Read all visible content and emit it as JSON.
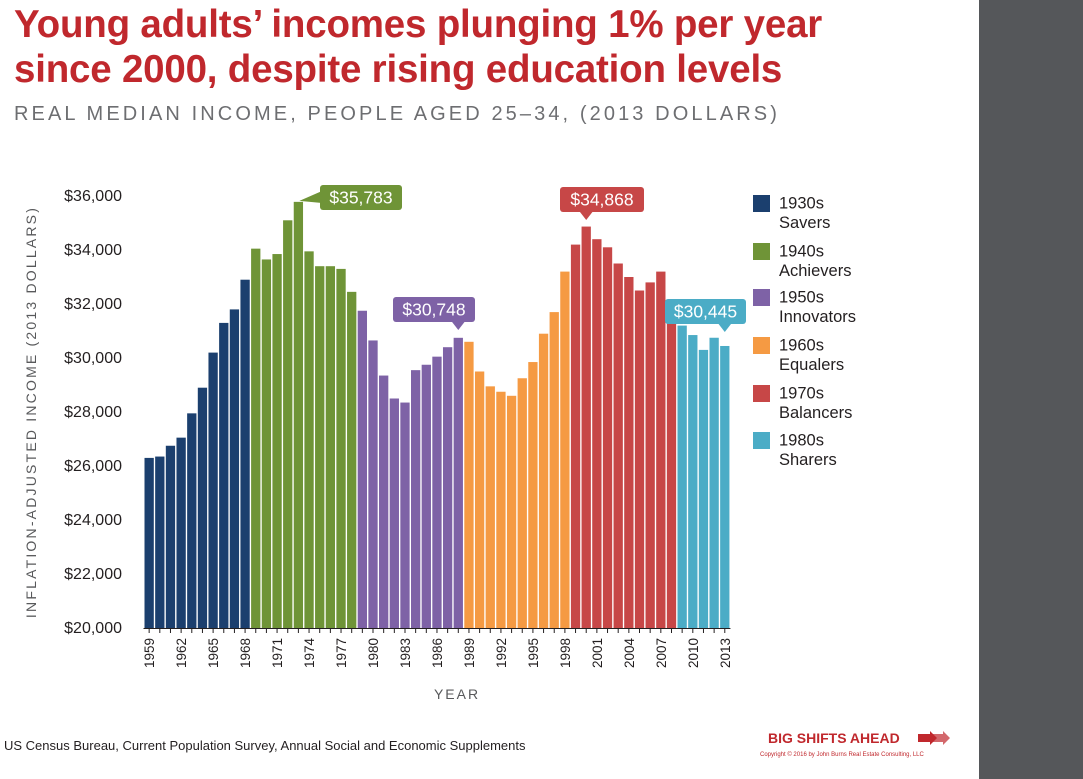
{
  "title_line1": "Young adults’ incomes plunging 1% per year",
  "title_line2": "since 2000, despite rising education levels",
  "subtitle": "REAL MEDIAN INCOME, PEOPLE AGED 25–34, (2013 DOLLARS)",
  "source": "US Census Bureau, Current Population Survey, Annual Social and Economic Supplements",
  "brand": "BIG SHIFTS AHEAD",
  "brand_icon": "double-arrow-icon",
  "copyright": "Copyright © 2016 by John Burns Real Estate Consulting, LLC",
  "chart_data": {
    "type": "bar",
    "xlabel": "YEAR",
    "ylabel": "INFLATION-ADJUSTED INCOME (2013 DOLLARS)",
    "ylim": [
      20000,
      36000
    ],
    "yticks": [
      20000,
      22000,
      24000,
      26000,
      28000,
      30000,
      32000,
      34000,
      36000
    ],
    "ytick_labels": [
      "$20,000",
      "$22,000",
      "$24,000",
      "$26,000",
      "$28,000",
      "$30,000",
      "$32,000",
      "$34,000",
      "$36,000"
    ],
    "xtick_labels": [
      "1959",
      "1962",
      "1965",
      "1968",
      "1971",
      "1974",
      "1977",
      "1980",
      "1983",
      "1986",
      "1989",
      "1992",
      "1995",
      "1998",
      "2001",
      "2004",
      "2007",
      "2010",
      "2013"
    ],
    "grid": false,
    "legend_position": "right",
    "series": [
      {
        "name": "1930s Savers",
        "label_lines": [
          "1930s",
          "Savers"
        ],
        "color": "#1b3f6e",
        "x": [
          "1959",
          "1960",
          "1961",
          "1962",
          "1963",
          "1964",
          "1965",
          "1966",
          "1967",
          "1968"
        ],
        "values": [
          26300,
          26350,
          26750,
          27050,
          27950,
          28900,
          30200,
          31300,
          31800,
          32900
        ]
      },
      {
        "name": "1940s Achievers",
        "label_lines": [
          "1940s",
          "Achievers"
        ],
        "color": "#6f9437",
        "x": [
          "1969",
          "1970",
          "1971",
          "1972",
          "1973",
          "1974",
          "1975",
          "1976",
          "1977",
          "1978"
        ],
        "values": [
          34050,
          33650,
          33850,
          35100,
          35783,
          33950,
          33400,
          33400,
          33300,
          32450
        ]
      },
      {
        "name": "1950s Innovators",
        "label_lines": [
          "1950s",
          "Innovators"
        ],
        "color": "#7e62a6",
        "x": [
          "1979",
          "1980",
          "1981",
          "1982",
          "1983",
          "1984",
          "1985",
          "1986",
          "1987",
          "1988"
        ],
        "values": [
          31750,
          30650,
          29350,
          28500,
          28350,
          29550,
          29750,
          30050,
          30400,
          30748
        ]
      },
      {
        "name": "1960s Equalers",
        "label_lines": [
          "1960s",
          "Equalers"
        ],
        "color": "#f59a43",
        "x": [
          "1989",
          "1990",
          "1991",
          "1992",
          "1993",
          "1994",
          "1995",
          "1996",
          "1997",
          "1998"
        ],
        "values": [
          30600,
          29500,
          28950,
          28750,
          28600,
          29250,
          29850,
          30900,
          31700,
          33200
        ]
      },
      {
        "name": "1970s Balancers",
        "label_lines": [
          "1970s",
          "Balancers"
        ],
        "color": "#c74747",
        "x": [
          "1999",
          "2000",
          "2001",
          "2002",
          "2003",
          "2004",
          "2005",
          "2006",
          "2007",
          "2008"
        ],
        "values": [
          34200,
          34868,
          34400,
          34100,
          33500,
          33000,
          32500,
          32800,
          33200,
          31600
        ]
      },
      {
        "name": "1980s Sharers",
        "label_lines": [
          "1980s",
          "Sharers"
        ],
        "color": "#4bacc6",
        "x": [
          "2009",
          "2010",
          "2011",
          "2012",
          "2013"
        ],
        "values": [
          31200,
          30850,
          30300,
          30750,
          30445
        ]
      }
    ],
    "annotations": [
      {
        "text": "$35,783",
        "x": "1973",
        "value": 35783,
        "color": "#6f9437"
      },
      {
        "text": "$30,748",
        "x": "1988",
        "value": 30748,
        "color": "#7e62a6"
      },
      {
        "text": "$34,868",
        "x": "2000",
        "value": 34868,
        "color": "#c74747"
      },
      {
        "text": "$30,445",
        "x": "2013",
        "value": 30445,
        "color": "#4bacc6"
      }
    ]
  }
}
